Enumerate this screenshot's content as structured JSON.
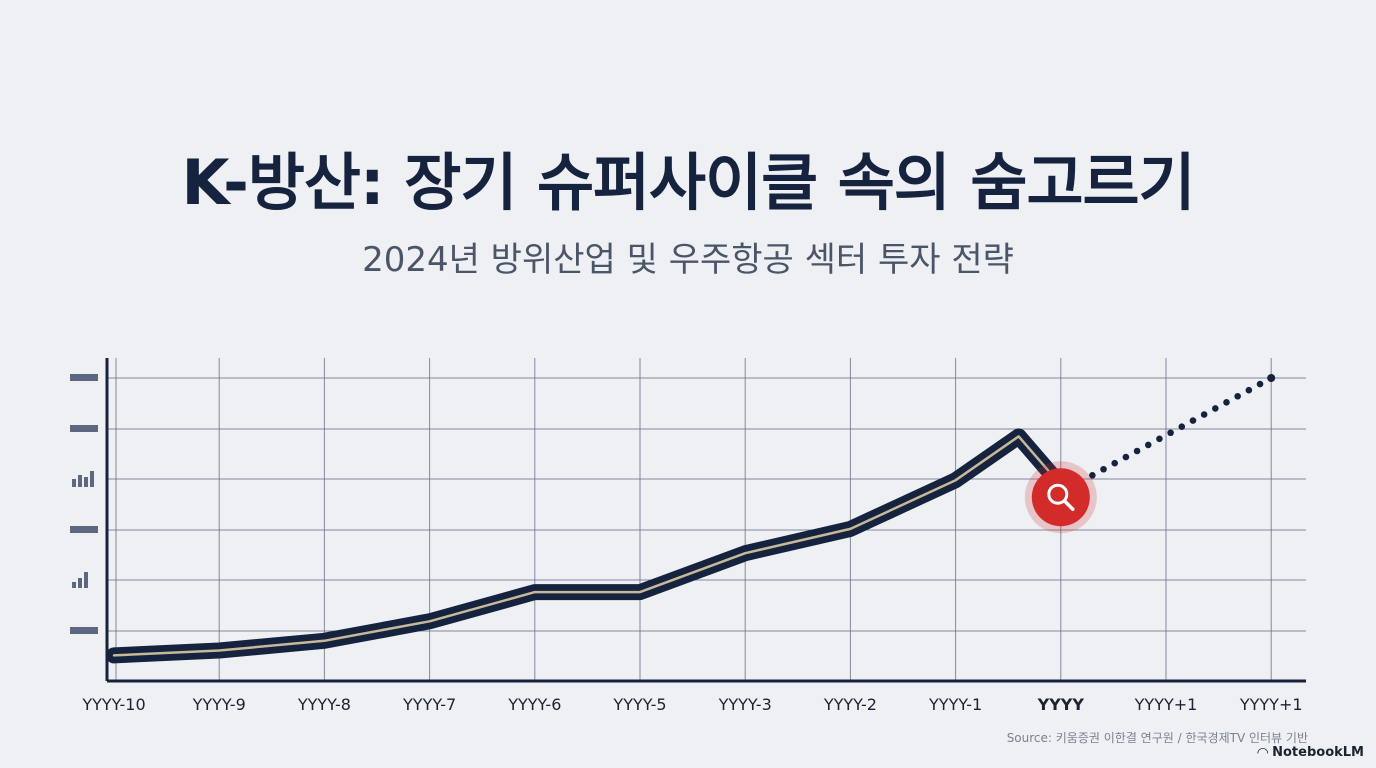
{
  "title": "K-방산: 장기 슈퍼사이클 속의 숨고르기",
  "subtitle": "2024년 방위산업 및 우주항공 섹터 투자 전략",
  "source": "Source: 키움증권 이한결 연구원 / 한국경제TV 인터뷰 기반",
  "brand": "NotebookLM",
  "colors": {
    "line": "#16233f",
    "line_inner": "#c7b89a",
    "highlight": "#d32a2a",
    "grid": "#5e6780",
    "projection": "#16233f"
  },
  "icons": {
    "highlight_marker": "search-icon",
    "axis_glyphs": [
      "dash",
      "dash",
      "bar-chart-icon",
      "dash",
      "bar-chart-icon",
      "dash"
    ]
  },
  "chart_data": {
    "type": "line",
    "title": "",
    "xlabel": "",
    "ylabel": "",
    "categories": [
      "YYYY-10",
      "YYYY-9",
      "YYYY-8",
      "YYYY-7",
      "YYYY-6",
      "YYYY-5",
      "YYYY-3",
      "YYYY-2",
      "YYYY-1",
      "YYYY",
      "YYYY+1",
      "YYYY+1"
    ],
    "highlight_category_index": 9,
    "ylim": [
      0,
      6
    ],
    "grid": true,
    "series": [
      {
        "style": "solid",
        "points": [
          {
            "x": 0,
            "y": 0.3
          },
          {
            "x": 1,
            "y": 0.4
          },
          {
            "x": 2,
            "y": 0.6
          },
          {
            "x": 3,
            "y": 1.0
          },
          {
            "x": 4,
            "y": 1.6
          },
          {
            "x": 5,
            "y": 1.6
          },
          {
            "x": 6,
            "y": 2.4
          },
          {
            "x": 7,
            "y": 2.9
          },
          {
            "x": 8,
            "y": 3.9
          },
          {
            "x": 8.6,
            "y": 4.8
          },
          {
            "x": 9,
            "y": 3.8
          }
        ]
      },
      {
        "style": "dotted",
        "points": [
          {
            "x": 9.3,
            "y": 4.0
          },
          {
            "x": 11,
            "y": 6.0
          }
        ]
      }
    ]
  }
}
